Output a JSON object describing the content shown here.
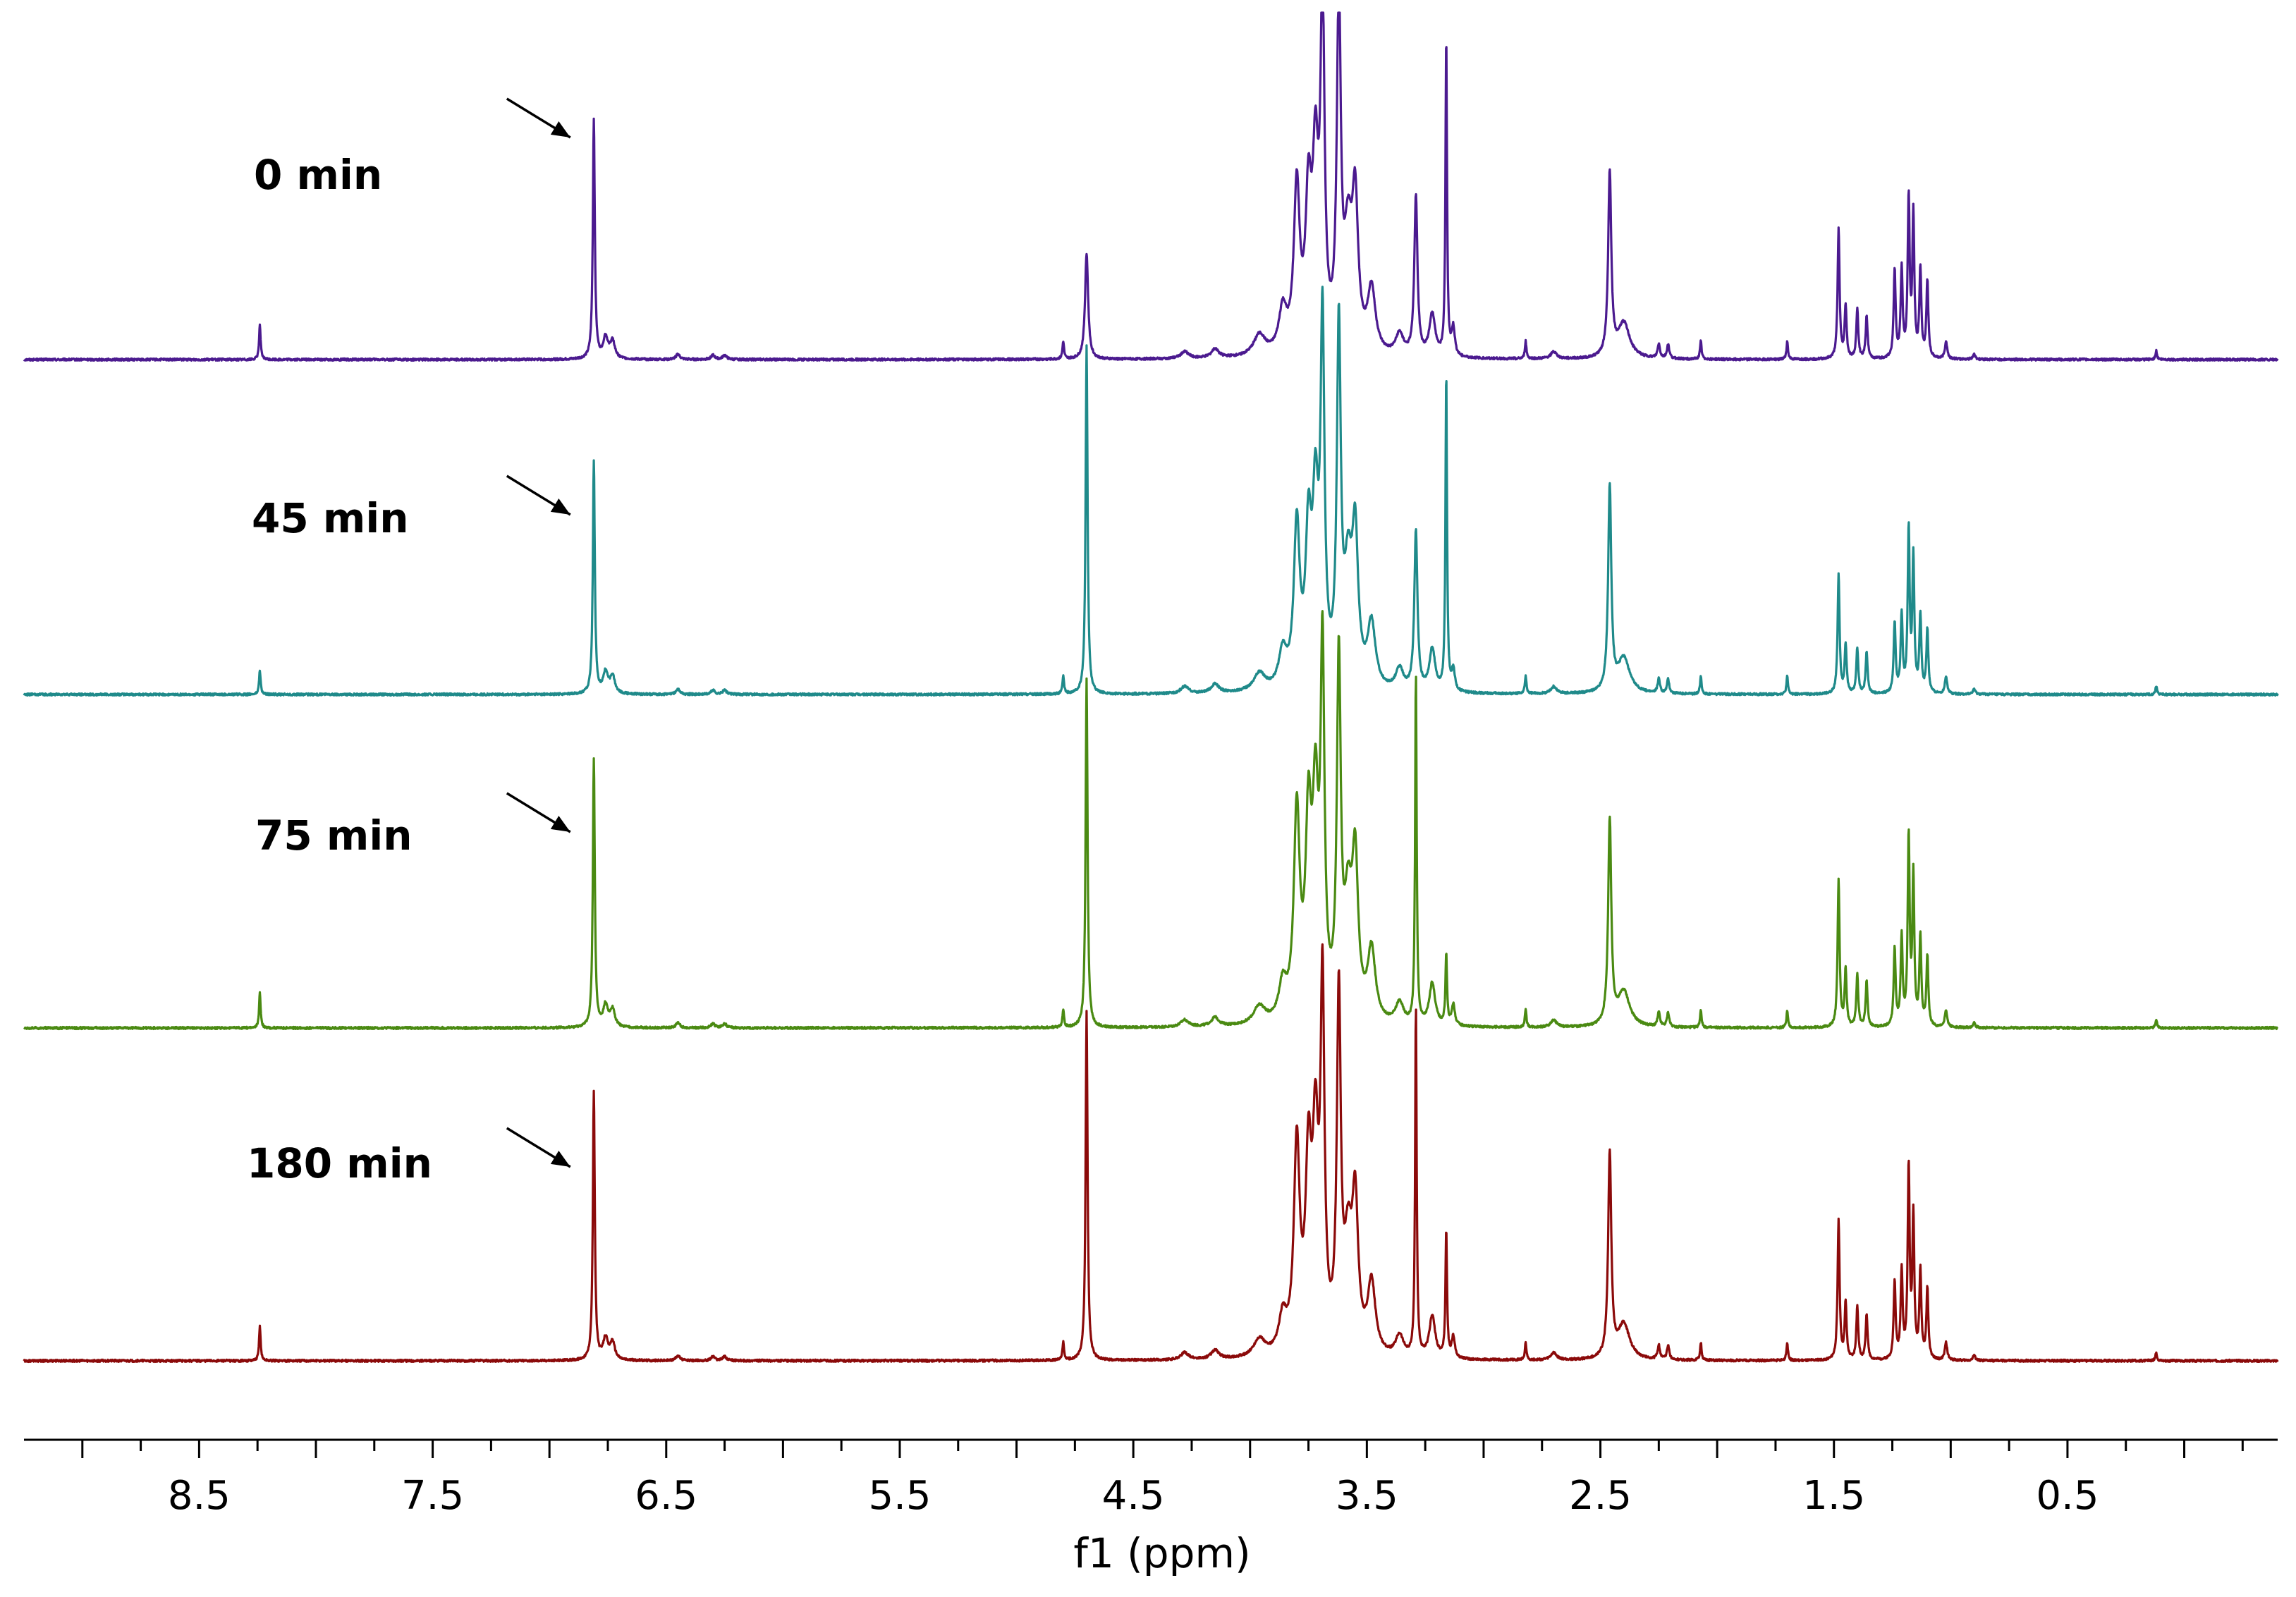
{
  "chart_data": {
    "type": "line",
    "title": "",
    "xlabel": "f1 (ppm)",
    "ylabel": "",
    "xlim": [
      9.25,
      -0.4
    ],
    "x_reversed": true,
    "grid": false,
    "ticks": {
      "labels": [
        "8.5",
        "7.5",
        "6.5",
        "5.5",
        "4.5",
        "3.5",
        "2.5",
        "1.5",
        "0.5"
      ],
      "values": [
        8.5,
        7.5,
        6.5,
        5.5,
        4.5,
        3.5,
        2.5,
        1.5,
        0.5
      ],
      "minor_step": 0.25
    },
    "annotation": {
      "type": "arrow",
      "target_ppm": 6.82,
      "count": 4
    },
    "series": [
      {
        "name": "0 min",
        "color": "#4b1a8f",
        "scale": 1.0,
        "peaks": [
          [
            8.24,
            0.1,
            0.004
          ],
          [
            6.81,
            0.68,
            0.005
          ],
          [
            6.76,
            0.06,
            0.012
          ],
          [
            6.73,
            0.05,
            0.012
          ],
          [
            6.45,
            0.015,
            0.01
          ],
          [
            6.3,
            0.012,
            0.01
          ],
          [
            6.25,
            0.012,
            0.01
          ],
          [
            4.8,
            0.05,
            0.004
          ],
          [
            4.7,
            0.3,
            0.008
          ],
          [
            4.28,
            0.02,
            0.02
          ],
          [
            4.15,
            0.025,
            0.02
          ],
          [
            3.96,
            0.06,
            0.03
          ],
          [
            3.86,
            0.12,
            0.02
          ],
          [
            3.8,
            0.46,
            0.015
          ],
          [
            3.75,
            0.4,
            0.015
          ],
          [
            3.72,
            0.5,
            0.015
          ],
          [
            3.69,
            0.99,
            0.01
          ],
          [
            3.62,
            0.99,
            0.01
          ],
          [
            3.58,
            0.3,
            0.02
          ],
          [
            3.55,
            0.4,
            0.015
          ],
          [
            3.48,
            0.18,
            0.02
          ],
          [
            3.36,
            0.06,
            0.02
          ],
          [
            3.29,
            0.45,
            0.008
          ],
          [
            3.22,
            0.12,
            0.015
          ],
          [
            3.16,
            0.9,
            0.004
          ],
          [
            3.13,
            0.08,
            0.008
          ],
          [
            2.82,
            0.05,
            0.004
          ],
          [
            2.7,
            0.02,
            0.015
          ],
          [
            2.46,
            0.52,
            0.008
          ],
          [
            2.4,
            0.1,
            0.03
          ],
          [
            2.25,
            0.04,
            0.006
          ],
          [
            2.21,
            0.04,
            0.006
          ],
          [
            2.07,
            0.05,
            0.004
          ],
          [
            1.7,
            0.05,
            0.004
          ],
          [
            1.48,
            0.37,
            0.005
          ],
          [
            1.45,
            0.15,
            0.005
          ],
          [
            1.4,
            0.14,
            0.005
          ],
          [
            1.36,
            0.12,
            0.005
          ],
          [
            1.24,
            0.25,
            0.005
          ],
          [
            1.21,
            0.25,
            0.005
          ],
          [
            1.18,
            0.45,
            0.005
          ],
          [
            1.16,
            0.4,
            0.005
          ],
          [
            1.13,
            0.25,
            0.005
          ],
          [
            1.1,
            0.22,
            0.005
          ],
          [
            1.02,
            0.05,
            0.006
          ],
          [
            0.9,
            0.015,
            0.006
          ],
          [
            0.12,
            0.025,
            0.004
          ]
        ]
      },
      {
        "name": "45 min",
        "color": "#1f8a8a",
        "scale": 1.0,
        "peaks": [
          [
            8.24,
            0.07,
            0.004
          ],
          [
            6.81,
            0.66,
            0.005
          ],
          [
            6.76,
            0.06,
            0.012
          ],
          [
            6.73,
            0.05,
            0.012
          ],
          [
            6.45,
            0.015,
            0.01
          ],
          [
            6.3,
            0.012,
            0.01
          ],
          [
            6.25,
            0.012,
            0.01
          ],
          [
            4.8,
            0.05,
            0.004
          ],
          [
            4.7,
            0.99,
            0.005
          ],
          [
            4.28,
            0.02,
            0.02
          ],
          [
            4.15,
            0.025,
            0.02
          ],
          [
            3.96,
            0.05,
            0.03
          ],
          [
            3.86,
            0.1,
            0.02
          ],
          [
            3.8,
            0.45,
            0.015
          ],
          [
            3.75,
            0.4,
            0.015
          ],
          [
            3.72,
            0.48,
            0.015
          ],
          [
            3.69,
            0.99,
            0.01
          ],
          [
            3.62,
            0.99,
            0.01
          ],
          [
            3.58,
            0.3,
            0.02
          ],
          [
            3.55,
            0.4,
            0.015
          ],
          [
            3.48,
            0.18,
            0.02
          ],
          [
            3.36,
            0.06,
            0.02
          ],
          [
            3.29,
            0.45,
            0.008
          ],
          [
            3.22,
            0.12,
            0.015
          ],
          [
            3.16,
            0.9,
            0.004
          ],
          [
            3.13,
            0.06,
            0.008
          ],
          [
            2.82,
            0.05,
            0.004
          ],
          [
            2.7,
            0.02,
            0.015
          ],
          [
            2.46,
            0.58,
            0.008
          ],
          [
            2.4,
            0.1,
            0.03
          ],
          [
            2.25,
            0.04,
            0.006
          ],
          [
            2.21,
            0.04,
            0.006
          ],
          [
            2.07,
            0.05,
            0.004
          ],
          [
            1.7,
            0.05,
            0.004
          ],
          [
            1.48,
            0.34,
            0.005
          ],
          [
            1.45,
            0.14,
            0.005
          ],
          [
            1.4,
            0.13,
            0.005
          ],
          [
            1.36,
            0.12,
            0.005
          ],
          [
            1.24,
            0.2,
            0.005
          ],
          [
            1.21,
            0.22,
            0.005
          ],
          [
            1.18,
            0.46,
            0.005
          ],
          [
            1.16,
            0.38,
            0.005
          ],
          [
            1.13,
            0.22,
            0.005
          ],
          [
            1.1,
            0.18,
            0.005
          ],
          [
            1.02,
            0.05,
            0.006
          ],
          [
            0.9,
            0.015,
            0.006
          ],
          [
            0.12,
            0.025,
            0.004
          ]
        ]
      },
      {
        "name": "75 min",
        "color": "#4a8a12",
        "scale": 1.0,
        "peaks": [
          [
            8.24,
            0.1,
            0.004
          ],
          [
            6.81,
            0.76,
            0.005
          ],
          [
            6.76,
            0.06,
            0.012
          ],
          [
            6.73,
            0.05,
            0.012
          ],
          [
            6.45,
            0.015,
            0.01
          ],
          [
            6.3,
            0.012,
            0.01
          ],
          [
            6.25,
            0.012,
            0.01
          ],
          [
            4.8,
            0.05,
            0.004
          ],
          [
            4.7,
            0.99,
            0.005
          ],
          [
            4.28,
            0.02,
            0.02
          ],
          [
            4.15,
            0.025,
            0.02
          ],
          [
            3.96,
            0.05,
            0.03
          ],
          [
            3.86,
            0.1,
            0.02
          ],
          [
            3.8,
            0.58,
            0.015
          ],
          [
            3.75,
            0.52,
            0.015
          ],
          [
            3.72,
            0.56,
            0.015
          ],
          [
            3.69,
            0.99,
            0.01
          ],
          [
            3.62,
            0.99,
            0.01
          ],
          [
            3.58,
            0.3,
            0.02
          ],
          [
            3.55,
            0.42,
            0.015
          ],
          [
            3.48,
            0.2,
            0.02
          ],
          [
            3.36,
            0.06,
            0.02
          ],
          [
            3.29,
            0.99,
            0.004
          ],
          [
            3.22,
            0.12,
            0.015
          ],
          [
            3.16,
            0.2,
            0.004
          ],
          [
            3.13,
            0.06,
            0.008
          ],
          [
            2.82,
            0.05,
            0.004
          ],
          [
            2.7,
            0.02,
            0.015
          ],
          [
            2.46,
            0.58,
            0.008
          ],
          [
            2.4,
            0.1,
            0.03
          ],
          [
            2.25,
            0.04,
            0.006
          ],
          [
            2.21,
            0.04,
            0.006
          ],
          [
            2.07,
            0.05,
            0.004
          ],
          [
            1.7,
            0.05,
            0.004
          ],
          [
            1.48,
            0.42,
            0.005
          ],
          [
            1.45,
            0.16,
            0.005
          ],
          [
            1.4,
            0.15,
            0.005
          ],
          [
            1.36,
            0.13,
            0.005
          ],
          [
            1.24,
            0.22,
            0.005
          ],
          [
            1.21,
            0.25,
            0.005
          ],
          [
            1.18,
            0.53,
            0.005
          ],
          [
            1.16,
            0.42,
            0.005
          ],
          [
            1.13,
            0.25,
            0.005
          ],
          [
            1.1,
            0.2,
            0.005
          ],
          [
            1.02,
            0.05,
            0.006
          ],
          [
            0.9,
            0.015,
            0.006
          ],
          [
            0.12,
            0.025,
            0.004
          ]
        ]
      },
      {
        "name": "180 min",
        "color": "#8b0a0a",
        "scale": 1.0,
        "peaks": [
          [
            8.24,
            0.1,
            0.004
          ],
          [
            6.81,
            0.76,
            0.005
          ],
          [
            6.76,
            0.06,
            0.012
          ],
          [
            6.73,
            0.05,
            0.012
          ],
          [
            6.45,
            0.015,
            0.01
          ],
          [
            6.3,
            0.012,
            0.01
          ],
          [
            6.25,
            0.012,
            0.01
          ],
          [
            4.8,
            0.05,
            0.004
          ],
          [
            4.7,
            0.99,
            0.005
          ],
          [
            4.28,
            0.02,
            0.02
          ],
          [
            4.15,
            0.025,
            0.02
          ],
          [
            3.96,
            0.05,
            0.03
          ],
          [
            3.86,
            0.1,
            0.02
          ],
          [
            3.8,
            0.58,
            0.015
          ],
          [
            3.75,
            0.5,
            0.015
          ],
          [
            3.72,
            0.56,
            0.015
          ],
          [
            3.69,
            0.99,
            0.01
          ],
          [
            3.62,
            0.99,
            0.01
          ],
          [
            3.58,
            0.28,
            0.02
          ],
          [
            3.55,
            0.4,
            0.015
          ],
          [
            3.48,
            0.2,
            0.02
          ],
          [
            3.36,
            0.06,
            0.02
          ],
          [
            3.29,
            0.99,
            0.004
          ],
          [
            3.22,
            0.12,
            0.015
          ],
          [
            3.16,
            0.36,
            0.004
          ],
          [
            3.13,
            0.06,
            0.008
          ],
          [
            2.82,
            0.05,
            0.004
          ],
          [
            2.7,
            0.02,
            0.015
          ],
          [
            2.46,
            0.58,
            0.008
          ],
          [
            2.4,
            0.1,
            0.03
          ],
          [
            2.25,
            0.04,
            0.006
          ],
          [
            2.21,
            0.04,
            0.006
          ],
          [
            2.07,
            0.05,
            0.004
          ],
          [
            1.7,
            0.05,
            0.004
          ],
          [
            1.48,
            0.4,
            0.005
          ],
          [
            1.45,
            0.16,
            0.005
          ],
          [
            1.4,
            0.15,
            0.005
          ],
          [
            1.36,
            0.13,
            0.005
          ],
          [
            1.24,
            0.22,
            0.005
          ],
          [
            1.21,
            0.25,
            0.005
          ],
          [
            1.18,
            0.54,
            0.005
          ],
          [
            1.16,
            0.4,
            0.005
          ],
          [
            1.13,
            0.25,
            0.005
          ],
          [
            1.1,
            0.2,
            0.005
          ],
          [
            1.02,
            0.05,
            0.006
          ],
          [
            0.9,
            0.015,
            0.006
          ],
          [
            0.12,
            0.025,
            0.004
          ]
        ]
      }
    ]
  }
}
